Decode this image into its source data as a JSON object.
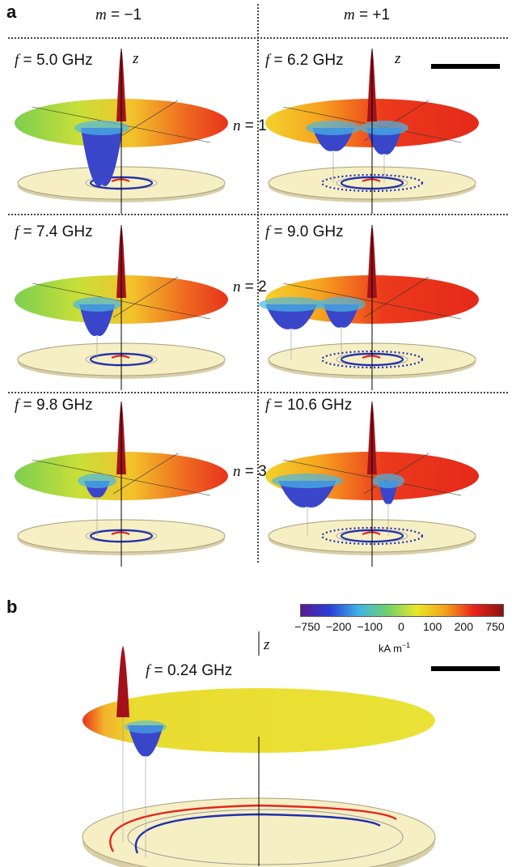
{
  "panel_a": {
    "letter": "a",
    "col_left": {
      "var": "m",
      "rest": " = −1"
    },
    "col_right": {
      "var": "m",
      "rest": " = +1"
    },
    "rows": [
      {
        "n_var": "n",
        "n_rest": " = 1",
        "left_f": "5.0 GHz",
        "right_f": "6.2 GHz"
      },
      {
        "n_var": "n",
        "n_rest": " = 2",
        "left_f": "7.4 GHz",
        "right_f": "9.0 GHz"
      },
      {
        "n_var": "n",
        "n_rest": " = 3",
        "left_f": "9.8 GHz",
        "right_f": "10.6 GHz"
      }
    ],
    "f_var": "f",
    "f_eq": " = ",
    "z_label": "z"
  },
  "panel_b": {
    "letter": "b",
    "f_var": "f",
    "f_eq": " = ",
    "f_value": "0.24 GHz",
    "z_label": "z"
  },
  "colorbar": {
    "ticks": [
      "−750",
      "−200",
      "−100",
      "0",
      "100",
      "200",
      "750"
    ],
    "unit": "kA m",
    "unit_exp": "−1",
    "colors": [
      "#5b1a8f",
      "#2a3fd8",
      "#3fb4e6",
      "#6fd16a",
      "#e8e82a",
      "#f2a21a",
      "#e8231c",
      "#8a1410"
    ]
  },
  "colors": {
    "peak": "#a3121b",
    "disc": "#f7efc4",
    "rim": "#a89f7e",
    "blue_orbit": "#1e2fb0",
    "red_orbit": "#e3261e"
  }
}
